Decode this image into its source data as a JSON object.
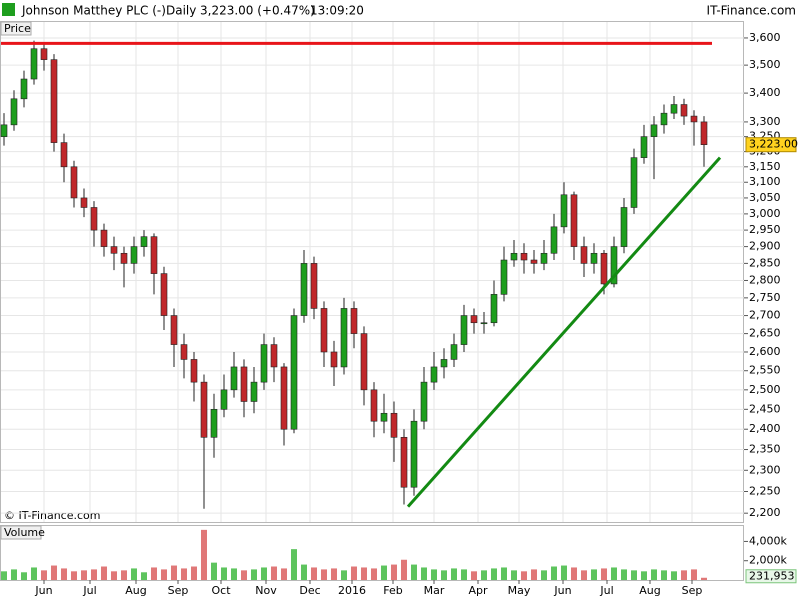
{
  "chart_data": [
    {
      "type": "candlestick",
      "title": "Johnson Matthey PLC (-)",
      "interval": "Daily",
      "quote": "3,223.00 (+0.47%)",
      "time": "13:09:20",
      "source": "IT-Finance.com",
      "panel_label": "Price",
      "watermark": "© IT-Finance.com",
      "up_color": "#1e9e1e",
      "down_color": "#c0282b",
      "open": [
        3250,
        3290,
        3380,
        3450,
        3560,
        3520,
        3230,
        3150,
        3050,
        3020,
        2950,
        2900,
        2880,
        2850,
        2900,
        2930,
        2820,
        2700,
        2620,
        2580,
        2520,
        2380,
        2450,
        2500,
        2560,
        2470,
        2520,
        2620,
        2560,
        2400,
        2700,
        2850,
        2720,
        2600,
        2560,
        2720,
        2650,
        2500,
        2420,
        2440,
        2380,
        2260,
        2420,
        2520,
        2560,
        2580,
        2620,
        2700,
        2680,
        2680,
        2760,
        2860,
        2880,
        2860,
        2850,
        2880,
        2960,
        3060,
        2900,
        2850,
        2880,
        2790,
        2900,
        3020,
        3180,
        3250,
        3290,
        3330,
        3360,
        3320,
        3300
      ],
      "high": [
        3330,
        3410,
        3480,
        3590,
        3580,
        3540,
        3260,
        3170,
        3080,
        3040,
        2970,
        2930,
        2900,
        2930,
        2950,
        2940,
        2840,
        2720,
        2650,
        2600,
        2540,
        2490,
        2540,
        2600,
        2580,
        2560,
        2650,
        2640,
        2570,
        2720,
        2890,
        2870,
        2740,
        2630,
        2750,
        2740,
        2670,
        2520,
        2490,
        2470,
        2400,
        2450,
        2560,
        2600,
        2610,
        2650,
        2730,
        2720,
        2710,
        2800,
        2900,
        2920,
        2910,
        2890,
        2920,
        3000,
        3100,
        3070,
        2930,
        2910,
        2890,
        2930,
        3050,
        3210,
        3290,
        3320,
        3360,
        3390,
        3380,
        3340,
        3320
      ],
      "low": [
        3220,
        3270,
        3350,
        3430,
        3480,
        3200,
        3100,
        3020,
        2990,
        2900,
        2870,
        2830,
        2780,
        2820,
        2870,
        2760,
        2660,
        2560,
        2530,
        2470,
        2210,
        2330,
        2430,
        2480,
        2430,
        2440,
        2500,
        2520,
        2360,
        2390,
        2680,
        2690,
        2560,
        2510,
        2540,
        2610,
        2460,
        2380,
        2390,
        2320,
        2220,
        2240,
        2400,
        2500,
        2530,
        2560,
        2600,
        2650,
        2650,
        2670,
        2740,
        2840,
        2820,
        2820,
        2830,
        2860,
        2940,
        2860,
        2810,
        2820,
        2760,
        2780,
        2880,
        3000,
        3160,
        3110,
        3260,
        3310,
        3290,
        3220,
        3150
      ],
      "close": [
        3290,
        3380,
        3450,
        3560,
        3520,
        3230,
        3150,
        3050,
        3020,
        2950,
        2900,
        2880,
        2850,
        2900,
        2930,
        2820,
        2700,
        2620,
        2580,
        2520,
        2380,
        2450,
        2500,
        2560,
        2470,
        2520,
        2620,
        2560,
        2400,
        2700,
        2850,
        2720,
        2600,
        2560,
        2720,
        2650,
        2500,
        2420,
        2440,
        2380,
        2260,
        2420,
        2520,
        2560,
        2580,
        2620,
        2700,
        2680,
        2680,
        2760,
        2860,
        2880,
        2860,
        2850,
        2880,
        2960,
        3060,
        2900,
        2850,
        2880,
        2790,
        2900,
        3020,
        3180,
        3250,
        3290,
        3330,
        3360,
        3320,
        3300,
        3223
      ],
      "last_price": {
        "value": 3223,
        "label": "3,223.00"
      },
      "hline": {
        "value": 3580,
        "color": "#e8141a"
      },
      "trendline": {
        "x": [
          40.4,
          71.6
        ],
        "y": [
          2215,
          3180
        ],
        "color": "#138a13"
      },
      "log_scale": true,
      "ylim": [
        2180,
        3660
      ],
      "yticks": [
        {
          "value": 2200,
          "label": "2,200"
        },
        {
          "value": 2250,
          "label": "2,250"
        },
        {
          "value": 2300,
          "label": "2,300"
        },
        {
          "value": 2350,
          "label": "2,350"
        },
        {
          "value": 2400,
          "label": "2,400"
        },
        {
          "value": 2450,
          "label": "2,450"
        },
        {
          "value": 2500,
          "label": "2,500"
        },
        {
          "value": 2550,
          "label": "2,550"
        },
        {
          "value": 2600,
          "label": "2,600"
        },
        {
          "value": 2650,
          "label": "2,650"
        },
        {
          "value": 2700,
          "label": "2,700"
        },
        {
          "value": 2750,
          "label": "2,750"
        },
        {
          "value": 2800,
          "label": "2,800"
        },
        {
          "value": 2850,
          "label": "2,850"
        },
        {
          "value": 2900,
          "label": "2,900"
        },
        {
          "value": 2950,
          "label": "2,950"
        },
        {
          "value": 3000,
          "label": "3,000"
        },
        {
          "value": 3050,
          "label": "3,050"
        },
        {
          "value": 3100,
          "label": "3,100"
        },
        {
          "value": 3150,
          "label": "3,150"
        },
        {
          "value": 3200,
          "label": "3,200"
        },
        {
          "value": 3250,
          "label": "3,250"
        },
        {
          "value": 3300,
          "label": "3,300"
        },
        {
          "value": 3400,
          "label": "3,400"
        },
        {
          "value": 3500,
          "label": "3,500"
        },
        {
          "value": 3600,
          "label": "3,600"
        }
      ],
      "xticks": [
        {
          "value": 4,
          "label": "Jun"
        },
        {
          "value": 8.6,
          "label": "Jul"
        },
        {
          "value": 13.2,
          "label": "Aug"
        },
        {
          "value": 17.4,
          "label": "Sep"
        },
        {
          "value": 21.7,
          "label": "Oct"
        },
        {
          "value": 26.2,
          "label": "Nov"
        },
        {
          "value": 30.6,
          "label": "Dec"
        },
        {
          "value": 34.8,
          "label": "2016"
        },
        {
          "value": 38.9,
          "label": "Feb"
        },
        {
          "value": 43,
          "label": "Mar"
        },
        {
          "value": 47.4,
          "label": "Apr"
        },
        {
          "value": 51.5,
          "label": "May"
        },
        {
          "value": 55.9,
          "label": "Jun"
        },
        {
          "value": 60.3,
          "label": "Jul"
        },
        {
          "value": 64.6,
          "label": "Aug"
        },
        {
          "value": 68.8,
          "label": "Sep"
        }
      ],
      "grid": true
    },
    {
      "type": "bar",
      "panel_label": "Volume",
      "values": [
        900000,
        1100000,
        800000,
        1300000,
        1000000,
        1500000,
        1200000,
        900000,
        1000000,
        1100000,
        1400000,
        900000,
        1000000,
        1200000,
        800000,
        1300000,
        1100000,
        1500000,
        1200000,
        1400000,
        5200000,
        1800000,
        1300000,
        1200000,
        1000000,
        1100000,
        1300000,
        1400000,
        1200000,
        3200000,
        1600000,
        1300000,
        1100000,
        1200000,
        1000000,
        1400000,
        1300000,
        1200000,
        1500000,
        1600000,
        2100000,
        1600000,
        1300000,
        1100000,
        1000000,
        1200000,
        1100000,
        900000,
        1000000,
        1200000,
        1300000,
        1000000,
        900000,
        1100000,
        1000000,
        1400000,
        1500000,
        1300000,
        1000000,
        1100000,
        1200000,
        1300000,
        1100000,
        1000000,
        900000,
        1100000,
        1000000,
        900000,
        1000000,
        1100000,
        231953
      ],
      "last_value": {
        "value": 231953,
        "label": "231,953"
      },
      "up_color": "#5ec45e",
      "down_color": "#e07878",
      "ylim": [
        0,
        5600000
      ],
      "yticks": [
        {
          "value": 2000000,
          "label": "2,000k"
        },
        {
          "value": 4000000,
          "label": "4,000k"
        }
      ]
    }
  ]
}
